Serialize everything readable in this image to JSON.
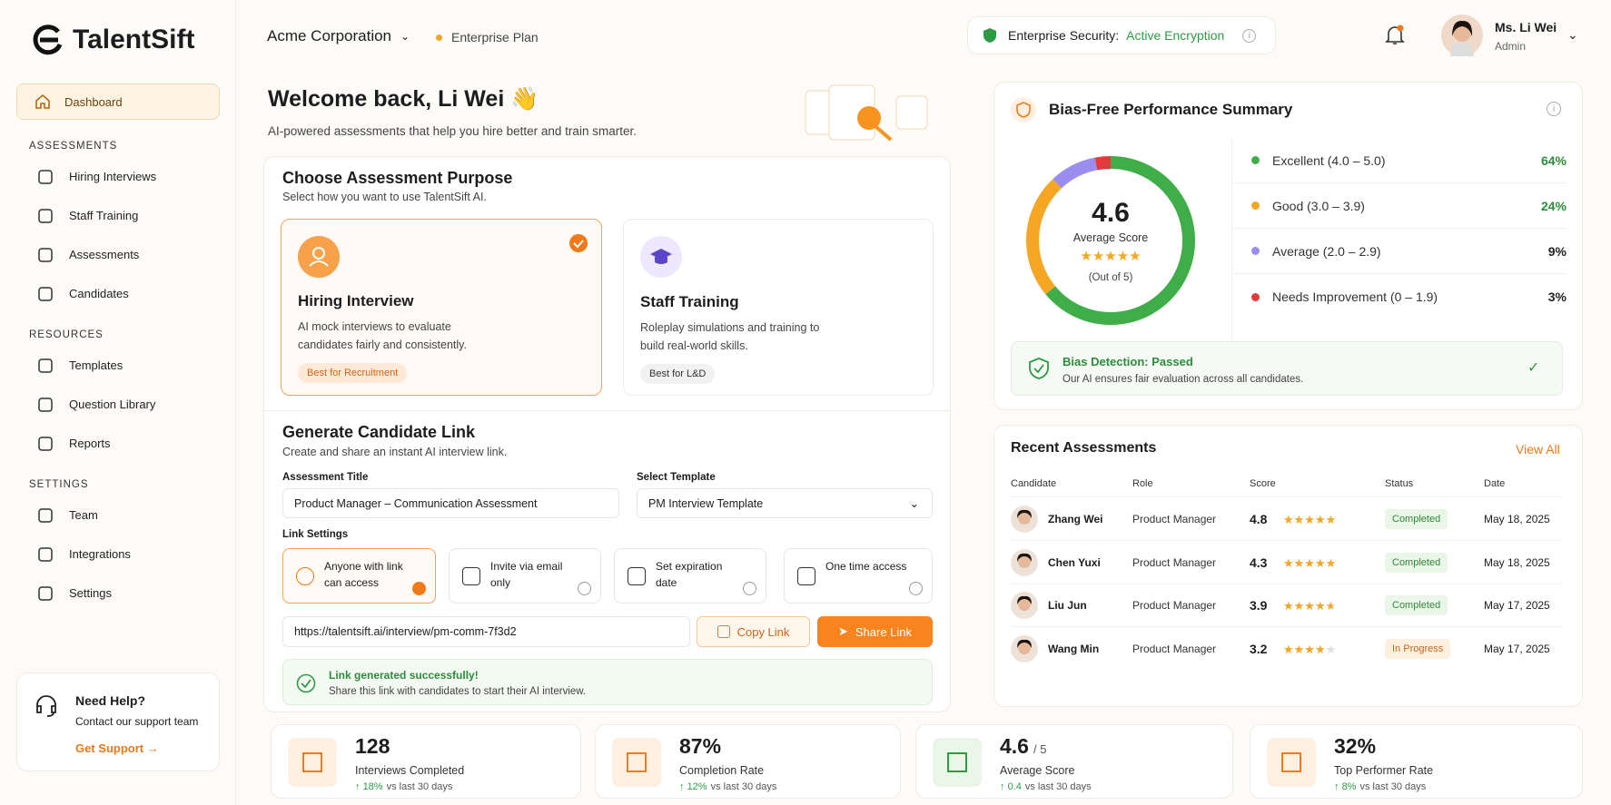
{
  "brand": "TalentSift",
  "header": {
    "org": "Acme Corporation",
    "plan": "Enterprise Plan",
    "security_label": "Enterprise Security:",
    "security_status": "Active Encryption",
    "user_name": "Ms. Li Wei",
    "user_role": "Admin"
  },
  "sidebar": {
    "active": "Dashboard",
    "sections": [
      {
        "title": "ASSESSMENTS",
        "items": [
          "Hiring Interviews",
          "Staff Training",
          "Assessments",
          "Candidates"
        ]
      },
      {
        "title": "RESOURCES",
        "items": [
          "Templates",
          "Question Library",
          "Reports"
        ]
      },
      {
        "title": "SETTINGS",
        "items": [
          "Team",
          "Integrations",
          "Settings"
        ]
      }
    ],
    "help": {
      "title": "Need Help?",
      "text": "Contact our support team",
      "link": "Get Support"
    }
  },
  "welcome": {
    "title": "Welcome back, Li Wei 👋",
    "subtitle": "AI-powered assessments that help you hire better and train smarter."
  },
  "purpose": {
    "title": "Choose Assessment Purpose",
    "subtitle": "Select how you want to use TalentSift AI.",
    "options": [
      {
        "title": "Hiring Interview",
        "text": "AI mock interviews to evaluate candidates fairly and consistently.",
        "tag": "Best for Recruitment"
      },
      {
        "title": "Staff Training",
        "text": "Roleplay simulations and training to build real-world skills.",
        "tag": "Best for L&D"
      }
    ]
  },
  "link": {
    "title": "Generate Candidate Link",
    "subtitle": "Create and share an instant AI interview link.",
    "title_label": "Assessment Title",
    "title_value": "Product Manager – Communication Assessment",
    "template_label": "Select Template",
    "template_value": "PM Interview Template",
    "settings_label": "Link Settings",
    "settings": [
      "Anyone with link can access",
      "Invite via email only",
      "Set expiration date",
      "One time access"
    ],
    "url": "https://talentsift.ai/interview/pm-comm-7f3d2",
    "copy": "Copy Link",
    "share": "Share Link",
    "success_title": "Link generated successfully!",
    "success_text": "Share this link with candidates to start their AI interview."
  },
  "summary": {
    "title": "Bias-Free Performance Summary",
    "score": 4.6,
    "score_label": "Average Score",
    "score_note": "(Out of 5)",
    "bands": [
      {
        "name": "Excellent (4.0 – 5.0)",
        "color": "#3fae49",
        "share": {
          "value": 64,
          "label": "64%"
        }
      },
      {
        "name": "Good (3.0 – 3.9)",
        "color": "#f5a623",
        "share": {
          "value": 24,
          "label": "24%"
        }
      },
      {
        "name": "Average (2.0 – 2.9)",
        "color": "#9b8cf0",
        "share": {
          "value": 9,
          "label": "9%"
        }
      },
      {
        "name": "Needs Improvement (0 – 1.9)",
        "color": "#e5393b",
        "share": {
          "value": 3,
          "label": "3%"
        }
      }
    ],
    "bias_title": "Bias Detection: Passed",
    "bias_text": "Our AI ensures fair evaluation across all candidates."
  },
  "recent": {
    "title": "Recent Assessments",
    "view_all": "View All",
    "columns": [
      "Candidate",
      "Role",
      "Score",
      "Status",
      "Date"
    ],
    "rows": [
      {
        "candidate": "Zhang Wei",
        "role": "Product Manager",
        "score": 4.8,
        "status": "Completed",
        "date": "May 18, 2025"
      },
      {
        "candidate": "Chen Yuxi",
        "role": "Product Manager",
        "score": 4.3,
        "status": "Completed",
        "date": "May 18, 2025"
      },
      {
        "candidate": "Liu Jun",
        "role": "Product Manager",
        "score": 3.9,
        "status": "Completed",
        "date": "May 17, 2025"
      },
      {
        "candidate": "Wang Min",
        "role": "Product Manager",
        "score": 3.2,
        "status": "In Progress",
        "date": "May 17, 2025"
      }
    ]
  },
  "stats": [
    {
      "value": "128",
      "label": "Interviews Completed",
      "change": "18%",
      "note": "vs last 30 days"
    },
    {
      "value": "87%",
      "label": "Completion Rate",
      "change": "12%",
      "note": "vs last 30 days"
    },
    {
      "value": "4.6",
      "suffix": "/ 5",
      "label": "Average Score",
      "change": "0.4",
      "note": "vs last 30 days"
    },
    {
      "value": "32%",
      "label": "Top Performer Rate",
      "change": "8%",
      "note": "vs last 30 days"
    }
  ]
}
